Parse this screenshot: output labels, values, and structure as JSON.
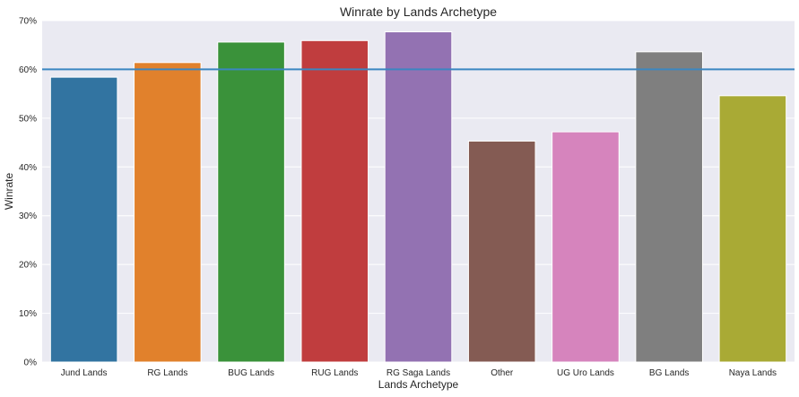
{
  "chart_data": {
    "type": "bar",
    "title": "Winrate by Lands Archetype",
    "xlabel": "Lands Archetype",
    "ylabel": "Winrate",
    "categories": [
      "Jund Lands",
      "RG Lands",
      "BUG Lands",
      "RUG Lands",
      "RG Saga Lands",
      "Other",
      "UG Uro Lands",
      "BG Lands",
      "Naya Lands"
    ],
    "values": [
      0.584,
      0.614,
      0.656,
      0.659,
      0.677,
      0.453,
      0.472,
      0.636,
      0.546
    ],
    "colors": [
      "#3274a1",
      "#e1812c",
      "#3a923a",
      "#c03d3e",
      "#9372b2",
      "#845b53",
      "#d684bd",
      "#7f7f7f",
      "#a9aa35"
    ],
    "ylim": [
      0,
      0.7
    ],
    "yticks": [
      0,
      0.1,
      0.2,
      0.3,
      0.4,
      0.5,
      0.6,
      0.7
    ],
    "ytick_labels": [
      "0%",
      "10%",
      "20%",
      "30%",
      "40%",
      "50%",
      "60%",
      "70%"
    ],
    "reference_line": {
      "y": 0.6,
      "color": "#3b86c1"
    },
    "grid": true,
    "background_color": "#eaeaf2"
  }
}
